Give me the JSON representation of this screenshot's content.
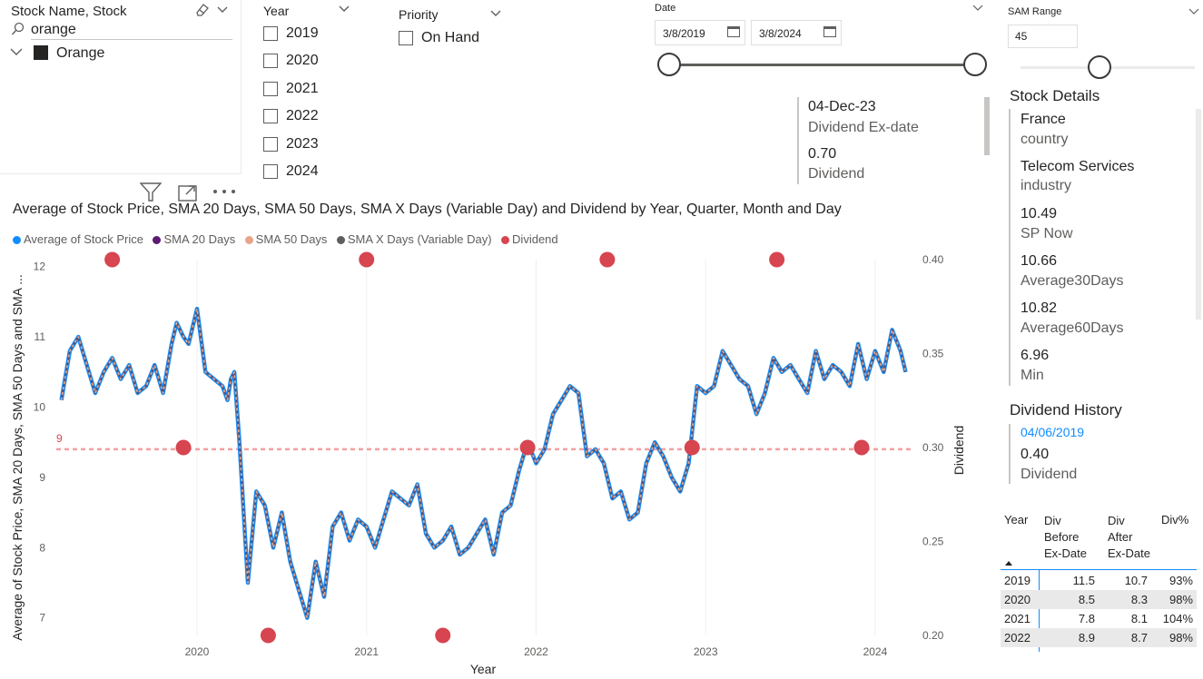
{
  "stock_filter": {
    "title": "Stock Name, Stock",
    "search_value": "orange",
    "item_label": "Orange"
  },
  "year_filter": {
    "title": "Year",
    "options": [
      "2019",
      "2020",
      "2021",
      "2022",
      "2023",
      "2024"
    ]
  },
  "priority_filter": {
    "title": "Priority",
    "option": "On Hand"
  },
  "date_filter": {
    "title": "Date",
    "start": "3/8/2019",
    "end": "3/8/2024"
  },
  "sam_range": {
    "title": "SAM Range",
    "value": "45"
  },
  "dividend_card": {
    "date_value": "04-Dec-23",
    "date_label": "Dividend Ex-date",
    "amount_value": "0.70",
    "amount_label": "Dividend"
  },
  "stock_details": {
    "title": "Stock Details",
    "items": [
      {
        "value": "France",
        "label": "country"
      },
      {
        "value": "Telecom Services",
        "label": "industry"
      },
      {
        "value": "10.49",
        "label": "SP Now"
      },
      {
        "value": "10.66",
        "label": "Average30Days"
      },
      {
        "value": "10.82",
        "label": "Average60Days"
      },
      {
        "value": "6.96",
        "label": "Min"
      }
    ]
  },
  "dividend_history": {
    "title": "Dividend History",
    "date": "04/06/2019",
    "value": "0.40",
    "label": "Dividend"
  },
  "div_table": {
    "headers": {
      "year": "Year",
      "before": [
        "Div",
        "Before",
        "Ex-Date"
      ],
      "after": [
        "Div",
        "After",
        "Ex-Date"
      ],
      "pct": "Div%"
    },
    "rows": [
      {
        "year": "2019",
        "before": "11.5",
        "after": "10.7",
        "pct": "93%"
      },
      {
        "year": "2020",
        "before": "8.5",
        "after": "8.3",
        "pct": "98%"
      },
      {
        "year": "2021",
        "before": "7.8",
        "after": "8.1",
        "pct": "104%"
      },
      {
        "year": "2022",
        "before": "8.9",
        "after": "8.7",
        "pct": "98%"
      }
    ]
  },
  "colors": {
    "stock_price": "#118DFF",
    "sma20": "#5B1A74",
    "sma50": "#E8A48A",
    "smax": "#605E5C",
    "dividend": "#D64550",
    "refline": "#F2A0A0",
    "link": "#118DFF"
  },
  "icons": [
    "eraser-icon",
    "chevron-down-icon",
    "search-icon",
    "chevron-expand-icon",
    "calendar-icon",
    "filter-icon",
    "focus-mode-icon",
    "more-options-icon",
    "sort-ascending-icon"
  ],
  "chart_data": {
    "type": "line",
    "title": "Average of Stock Price, SMA 20 Days, SMA 50 Days, SMA X Days (Variable Day) and Dividend by Year, Quarter, Month and Day",
    "xlabel": "Year",
    "ylabel": "Average of Stock Price, SMA 20 Days, SMA 50 Days and SMA ...",
    "y2label": "Dividend",
    "x_ticks": [
      "2020",
      "2021",
      "2022",
      "2023",
      "2024"
    ],
    "y_ticks": [
      "7",
      "8",
      "9",
      "10",
      "11",
      "12"
    ],
    "y2_ticks": [
      "0.20",
      "0.25",
      "0.30",
      "0.35",
      "0.40"
    ],
    "ylim": [
      6.75,
      12.1
    ],
    "y2lim": [
      0.2,
      0.4
    ],
    "xlim": [
      2019.17,
      2024.22
    ],
    "grid": true,
    "legend_position": "top-left",
    "reference_line": {
      "label": "9",
      "value": 9.4
    },
    "series": [
      {
        "name": "Average of Stock Price",
        "axis": "primary",
        "x": [
          2019.2,
          2019.25,
          2019.3,
          2019.35,
          2019.4,
          2019.45,
          2019.5,
          2019.55,
          2019.6,
          2019.65,
          2019.7,
          2019.75,
          2019.8,
          2019.85,
          2019.88,
          2019.92,
          2019.95,
          2020.0,
          2020.05,
          2020.1,
          2020.15,
          2020.18,
          2020.2,
          2020.22,
          2020.25,
          2020.3,
          2020.35,
          2020.4,
          2020.45,
          2020.5,
          2020.55,
          2020.6,
          2020.65,
          2020.7,
          2020.75,
          2020.8,
          2020.85,
          2020.9,
          2020.95,
          2021.0,
          2021.05,
          2021.1,
          2021.15,
          2021.2,
          2021.25,
          2021.3,
          2021.35,
          2021.4,
          2021.45,
          2021.5,
          2021.55,
          2021.6,
          2021.65,
          2021.7,
          2021.75,
          2021.8,
          2021.85,
          2021.9,
          2021.95,
          2022.0,
          2022.05,
          2022.1,
          2022.15,
          2022.2,
          2022.25,
          2022.3,
          2022.35,
          2022.4,
          2022.45,
          2022.5,
          2022.55,
          2022.6,
          2022.65,
          2022.7,
          2022.75,
          2022.8,
          2022.85,
          2022.9,
          2022.95,
          2023.0,
          2023.05,
          2023.1,
          2023.15,
          2023.2,
          2023.25,
          2023.3,
          2023.35,
          2023.4,
          2023.45,
          2023.5,
          2023.55,
          2023.6,
          2023.65,
          2023.7,
          2023.75,
          2023.8,
          2023.85,
          2023.9,
          2023.95,
          2024.0,
          2024.05,
          2024.1,
          2024.15,
          2024.18
        ],
        "values": [
          10.1,
          10.8,
          11.0,
          10.6,
          10.2,
          10.5,
          10.7,
          10.4,
          10.6,
          10.2,
          10.3,
          10.6,
          10.2,
          10.9,
          11.2,
          11.0,
          10.9,
          11.4,
          10.5,
          10.4,
          10.3,
          10.1,
          10.4,
          10.5,
          9.5,
          7.5,
          8.8,
          8.6,
          8.0,
          8.5,
          7.8,
          7.4,
          7.0,
          7.8,
          7.3,
          8.3,
          8.5,
          8.1,
          8.4,
          8.3,
          8.0,
          8.4,
          8.8,
          8.7,
          8.6,
          8.9,
          8.2,
          8.0,
          8.1,
          8.3,
          7.9,
          8.0,
          8.2,
          8.4,
          7.9,
          8.5,
          8.6,
          9.1,
          9.5,
          9.2,
          9.4,
          9.9,
          10.1,
          10.3,
          10.2,
          9.3,
          9.4,
          9.2,
          8.7,
          8.8,
          8.4,
          8.5,
          9.2,
          9.5,
          9.3,
          9.0,
          8.8,
          9.2,
          10.3,
          10.2,
          10.3,
          10.8,
          10.6,
          10.4,
          10.3,
          9.9,
          10.2,
          10.7,
          10.5,
          10.6,
          10.4,
          10.2,
          10.8,
          10.4,
          10.6,
          10.5,
          10.3,
          10.9,
          10.4,
          10.8,
          10.5,
          11.1,
          10.8,
          10.5
        ]
      },
      {
        "name": "SMA 20 Days",
        "axis": "primary",
        "same_as": "Average of Stock Price"
      },
      {
        "name": "SMA 50 Days",
        "axis": "primary",
        "same_as": "Average of Stock Price"
      },
      {
        "name": "SMA X Days (Variable Day)",
        "axis": "primary",
        "same_as": "Average of Stock Price"
      },
      {
        "name": "Dividend",
        "axis": "secondary",
        "type": "scatter",
        "x": [
          2019.5,
          2019.92,
          2020.42,
          2021.0,
          2021.45,
          2021.95,
          2022.42,
          2022.92,
          2023.42,
          2023.92
        ],
        "values": [
          0.4,
          0.3,
          0.2,
          0.4,
          0.2,
          0.3,
          0.4,
          0.3,
          0.4,
          0.3
        ]
      }
    ]
  }
}
